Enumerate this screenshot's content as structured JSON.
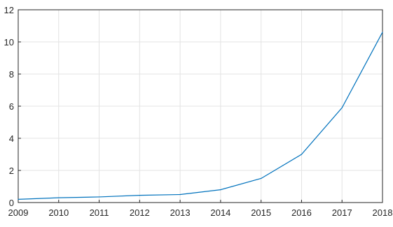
{
  "chart_data": {
    "type": "line",
    "title": "",
    "xlabel": "",
    "ylabel": "",
    "x": [
      2009,
      2010,
      2011,
      2012,
      2013,
      2014,
      2015,
      2016,
      2017,
      2018
    ],
    "series": [
      {
        "values": [
          0.2,
          0.3,
          0.35,
          0.45,
          0.5,
          0.8,
          1.5,
          3.0,
          5.9,
          10.6
        ],
        "color": "#0072bd"
      }
    ],
    "xlim": [
      2009,
      2018
    ],
    "ylim": [
      0,
      12
    ],
    "x_ticks": [
      "2009",
      "2010",
      "2011",
      "2012",
      "2013",
      "2014",
      "2015",
      "2016",
      "2017",
      "2018"
    ],
    "y_ticks": [
      "0",
      "2",
      "4",
      "6",
      "8",
      "10",
      "12"
    ],
    "grid": true,
    "legend": "none"
  }
}
